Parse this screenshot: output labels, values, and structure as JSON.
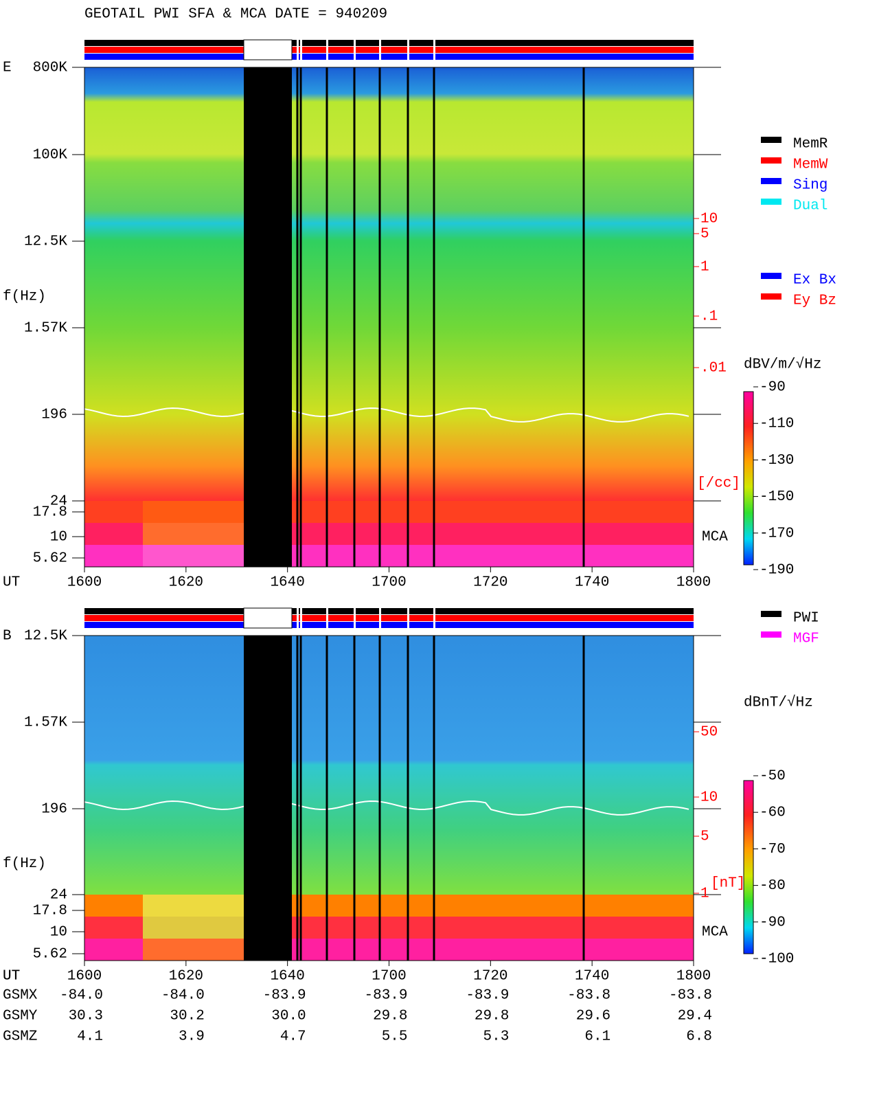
{
  "title": "GEOTAIL  PWI SFA & MCA   DATE = 940209",
  "panels": [
    {
      "label": "E",
      "y_label": "f(Hz)",
      "freq_ticks": [
        "800K",
        "100K",
        "12.5K",
        "1.57K",
        "196",
        "24",
        "17.8",
        "10",
        "5.62"
      ],
      "x_label": "UT",
      "x_ticks": [
        "1600",
        "1620",
        "1640",
        "1700",
        "1720",
        "1740",
        "1800"
      ],
      "density_ticks": [
        "10",
        "5",
        "1",
        ".1",
        ".01"
      ],
      "density_unit": "[/cc]",
      "mca_label": "MCA",
      "colorbar_unit": "dBV/m/√Hz",
      "colorbar_ticks": [
        -90,
        -110,
        -130,
        -150,
        -170,
        -190
      ],
      "legend": [
        {
          "name": "MemR",
          "color": "#000000"
        },
        {
          "name": "MemW",
          "color": "#ff0000"
        },
        {
          "name": "Sing",
          "color": "#0000ff"
        },
        {
          "name": "Dual",
          "color": "#00e8f0"
        }
      ],
      "legend2": [
        {
          "name": "Ex Bx",
          "color": "#0000ff"
        },
        {
          "name": "Ey Bz",
          "color": "#ff0000"
        }
      ]
    },
    {
      "label": "B",
      "y_label": "f(Hz)",
      "freq_ticks": [
        "12.5K",
        "1.57K",
        "196",
        "24",
        "17.8",
        "10",
        "5.62"
      ],
      "x_label": "UT",
      "x_ticks": [
        "1600",
        "1620",
        "1640",
        "1700",
        "1720",
        "1740",
        "1800"
      ],
      "density_ticks": [
        "50",
        "10",
        "5",
        "1"
      ],
      "density_unit": "[nT]",
      "mca_label": "MCA",
      "colorbar_unit": "dBnT/√Hz",
      "colorbar_ticks": [
        -50,
        -60,
        -70,
        -80,
        -90,
        -100
      ],
      "legend": [
        {
          "name": "PWI",
          "color": "#000000"
        },
        {
          "name": "MGF",
          "color": "#ff00ff"
        }
      ]
    }
  ],
  "ephemeris": {
    "ut_label": "UT",
    "rows": [
      {
        "name": "GSMX",
        "values": [
          "-84.0",
          "-84.0",
          "-83.9",
          "-83.9",
          "-83.9",
          "-83.8",
          "-83.8"
        ]
      },
      {
        "name": "GSMY",
        "values": [
          "30.3",
          "30.2",
          "30.0",
          "29.8",
          "29.8",
          "29.6",
          "29.4"
        ]
      },
      {
        "name": "GSMZ",
        "values": [
          "4.1",
          "3.9",
          "4.7",
          "5.5",
          "5.3",
          "6.1",
          "6.8"
        ]
      }
    ]
  }
}
